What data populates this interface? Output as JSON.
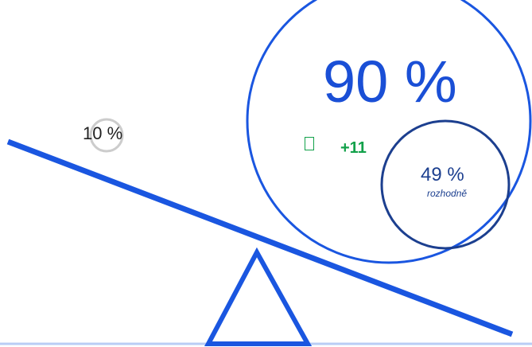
{
  "seesaw": {
    "minor_value": "10 %",
    "major_value": "90 %",
    "change_icon": "up-arrow-icon",
    "change_value": "+11",
    "sub_value": "49 %",
    "sub_label": "rozhodně"
  },
  "colors": {
    "beam": "#1a56e0",
    "outer_circle": "#1a56e0",
    "inner_circle": "#1c3f8f",
    "positive": "#12a14a",
    "ground": "#b9cdf5",
    "small_circle": "#cccccc"
  }
}
